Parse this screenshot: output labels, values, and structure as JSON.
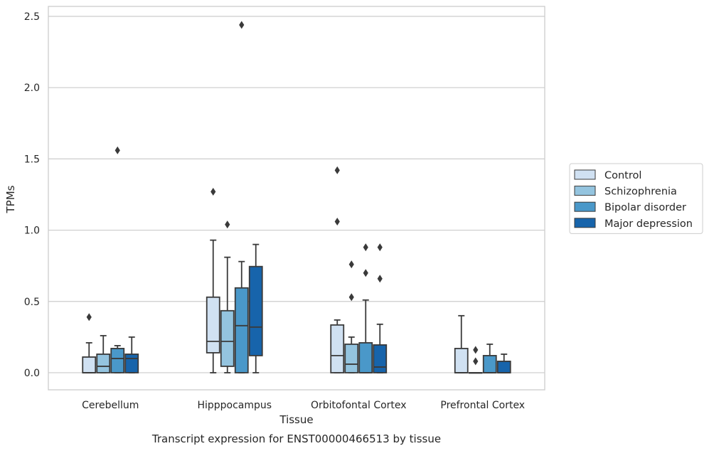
{
  "chart_data": {
    "type": "box",
    "caption": "Transcript expression for ENST00000466513 by tissue",
    "xlabel": "Tissue",
    "ylabel": "TPMs",
    "ylim": [
      -0.12,
      2.57
    ],
    "yticks": [
      0.0,
      0.5,
      1.0,
      1.5,
      2.0,
      2.5
    ],
    "ytick_labels": [
      "0.0",
      "0.5",
      "1.0",
      "1.5",
      "2.0",
      "2.5"
    ],
    "categories": [
      "Cerebellum",
      "Hipppocampus",
      "Orbitofontal Cortex",
      "Prefrontal Cortex"
    ],
    "grid": true,
    "legend_position": "right",
    "series": [
      {
        "name": "Control",
        "color": "#d0e1f2",
        "boxes": [
          {
            "whislo": 0.0,
            "q1": 0.0,
            "med": 0.0,
            "q3": 0.11,
            "whishi": 0.21,
            "fliers": [
              0.39
            ]
          },
          {
            "whislo": 0.0,
            "q1": 0.14,
            "med": 0.22,
            "q3": 0.53,
            "whishi": 0.93,
            "fliers": [
              1.27
            ]
          },
          {
            "whislo": 0.0,
            "q1": 0.0,
            "med": 0.12,
            "q3": 0.335,
            "whishi": 0.37,
            "fliers": [
              1.06,
              1.42
            ]
          },
          {
            "whislo": 0.0,
            "q1": 0.0,
            "med": 0.0,
            "q3": 0.17,
            "whishi": 0.4,
            "fliers": []
          }
        ]
      },
      {
        "name": "Schizophrenia",
        "color": "#94c4df",
        "boxes": [
          {
            "whislo": 0.0,
            "q1": 0.0,
            "med": 0.045,
            "q3": 0.13,
            "whishi": 0.26,
            "fliers": []
          },
          {
            "whislo": 0.0,
            "q1": 0.045,
            "med": 0.22,
            "q3": 0.435,
            "whishi": 0.81,
            "fliers": [
              1.04
            ]
          },
          {
            "whislo": 0.0,
            "q1": 0.0,
            "med": 0.06,
            "q3": 0.2,
            "whishi": 0.25,
            "fliers": [
              0.53,
              0.76
            ]
          },
          {
            "whislo": 0.0,
            "q1": 0.0,
            "med": 0.0,
            "q3": 0.0,
            "whishi": 0.0,
            "fliers": [
              0.08,
              0.16
            ]
          }
        ]
      },
      {
        "name": "Bipolar disorder",
        "color": "#4a98c9",
        "boxes": [
          {
            "whislo": 0.0,
            "q1": 0.0,
            "med": 0.1,
            "q3": 0.17,
            "whishi": 0.19,
            "fliers": [
              1.56
            ]
          },
          {
            "whislo": 0.0,
            "q1": 0.0,
            "med": 0.33,
            "q3": 0.595,
            "whishi": 0.78,
            "fliers": [
              2.44
            ]
          },
          {
            "whislo": 0.0,
            "q1": 0.0,
            "med": 0.0,
            "q3": 0.21,
            "whishi": 0.51,
            "fliers": [
              0.7,
              0.88
            ]
          },
          {
            "whislo": 0.0,
            "q1": 0.0,
            "med": 0.0,
            "q3": 0.12,
            "whishi": 0.2,
            "fliers": []
          }
        ]
      },
      {
        "name": "Major depression",
        "color": "#1764ab",
        "boxes": [
          {
            "whislo": 0.0,
            "q1": 0.0,
            "med": 0.1,
            "q3": 0.13,
            "whishi": 0.25,
            "fliers": []
          },
          {
            "whislo": 0.0,
            "q1": 0.12,
            "med": 0.32,
            "q3": 0.745,
            "whishi": 0.9,
            "fliers": []
          },
          {
            "whislo": 0.0,
            "q1": 0.0,
            "med": 0.04,
            "q3": 0.195,
            "whishi": 0.34,
            "fliers": [
              0.66,
              0.88
            ]
          },
          {
            "whislo": 0.0,
            "q1": 0.0,
            "med": 0.0,
            "q3": 0.08,
            "whishi": 0.13,
            "fliers": []
          }
        ]
      }
    ],
    "colors": {
      "grid": "#cccccc",
      "box_edge": "#3a3a3a",
      "frame": "#cccccc"
    }
  }
}
